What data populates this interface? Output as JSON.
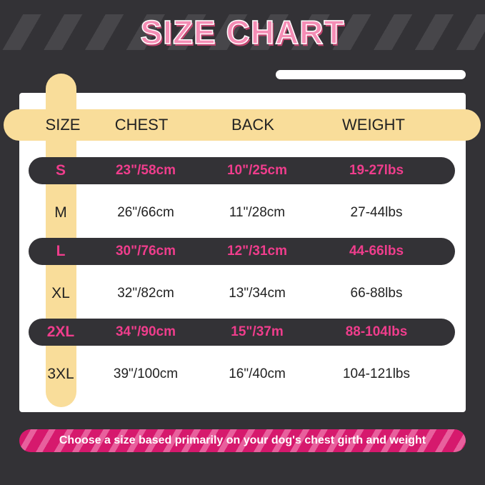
{
  "title": "SIZE CHART",
  "headers": [
    "SIZE",
    "CHEST",
    "BACK",
    "WEIGHT"
  ],
  "rows": [
    {
      "size": "S",
      "chest": "23\"/58cm",
      "back": "10\"/25cm",
      "weight": "19-27lbs",
      "highlight": true
    },
    {
      "size": "M",
      "chest": "26\"/66cm",
      "back": "11\"/28cm",
      "weight": "27-44lbs",
      "highlight": false
    },
    {
      "size": "L",
      "chest": "30\"/76cm",
      "back": "12\"/31cm",
      "weight": "44-66lbs",
      "highlight": true
    },
    {
      "size": "XL",
      "chest": "32\"/82cm",
      "back": "13\"/34cm",
      "weight": "66-88lbs",
      "highlight": false
    },
    {
      "size": "2XL",
      "chest": "34\"/90cm",
      "back": "15\"/37m",
      "weight": "88-104lbs",
      "highlight": true
    },
    {
      "size": "3XL",
      "chest": "39\"/100cm",
      "back": "16\"/40cm",
      "weight": "104-121lbs",
      "highlight": false
    }
  ],
  "note": "Choose a size based primarily on your dog's chest girth and weight",
  "colors": {
    "background": "#333236",
    "accent_pink": "#ef3d8c",
    "header_yellow": "#f9dd9a",
    "title_pink": "#f58db5"
  }
}
